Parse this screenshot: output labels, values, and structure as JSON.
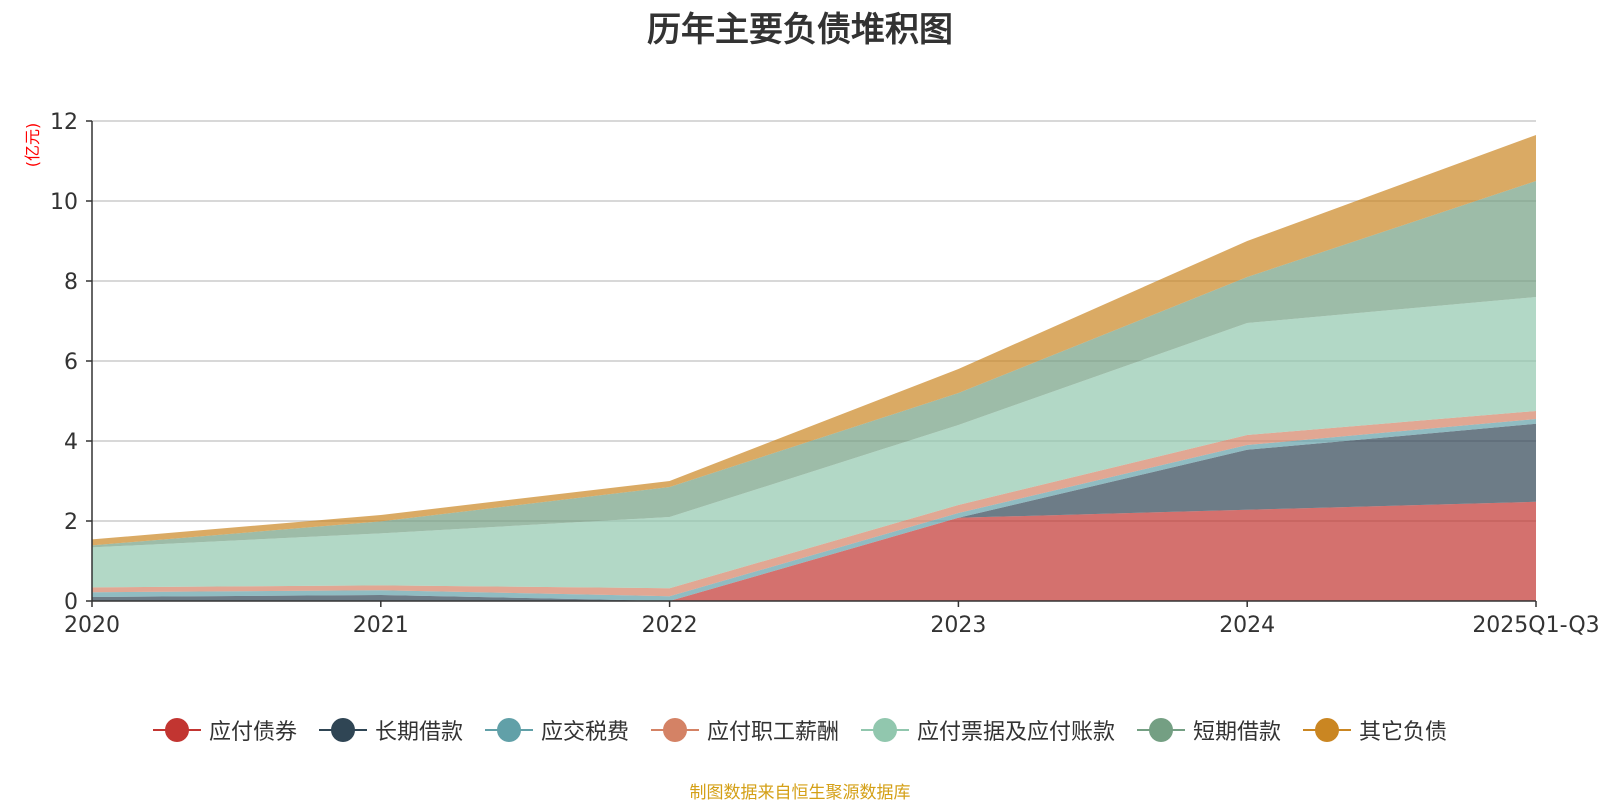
{
  "chart_data": {
    "type": "area",
    "stacked": true,
    "title": "历年主要负债堆积图",
    "ylabel": "(亿元)",
    "xlabel": "",
    "categories": [
      "2020",
      "2021",
      "2022",
      "2023",
      "2024",
      "2025Q1-Q3"
    ],
    "ylim": [
      0,
      12
    ],
    "yticks": [
      0,
      2,
      4,
      6,
      8,
      10,
      12
    ],
    "grid": true,
    "legend_position": "bottom",
    "series": [
      {
        "name": "应付债券",
        "color": "#c23531",
        "values": [
          0,
          0,
          0,
          2.08,
          2.28,
          2.48
        ]
      },
      {
        "name": "长期借款",
        "color": "#2f4554",
        "values": [
          0.1,
          0.15,
          0,
          0,
          1.5,
          1.95
        ]
      },
      {
        "name": "应交税费",
        "color": "#61a0a8",
        "values": [
          0.12,
          0.12,
          0.12,
          0.12,
          0.12,
          0.12
        ]
      },
      {
        "name": "应付职工薪酬",
        "color": "#d48265",
        "values": [
          0.12,
          0.12,
          0.2,
          0.2,
          0.25,
          0.2
        ]
      },
      {
        "name": "应付票据及应付账款",
        "color": "#91c7ae",
        "values": [
          1.0,
          1.3,
          1.78,
          2.0,
          2.8,
          2.85
        ]
      },
      {
        "name": "短期借款",
        "color": "#749f83",
        "values": [
          0.05,
          0.3,
          0.75,
          0.8,
          1.15,
          2.9
        ]
      },
      {
        "name": "其它负债",
        "color": "#ca8622",
        "values": [
          0.15,
          0.16,
          0.15,
          0.6,
          0.9,
          1.15
        ]
      }
    ],
    "source_note": "制图数据来自恒生聚源数据库"
  }
}
